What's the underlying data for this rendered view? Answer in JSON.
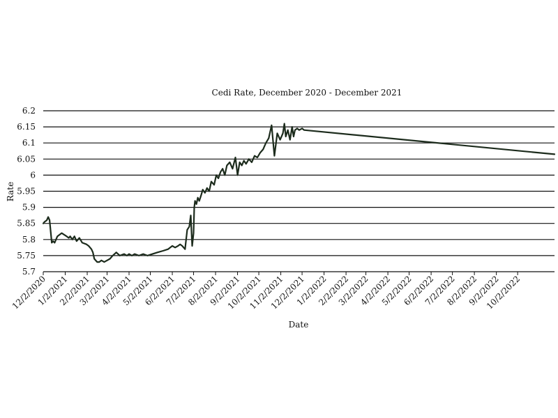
{
  "chart_data": {
    "type": "line",
    "title": "Cedi Rate, December 2020 - December 2021",
    "xlabel": "Date",
    "ylabel": "Rate",
    "ylim": [
      5.7,
      6.2
    ],
    "y_ticks": [
      "5.7",
      "5.75",
      "5.8",
      "5.85",
      "5.9",
      "5.95",
      "6",
      "6.05",
      "6.1",
      "6.15",
      "6.2"
    ],
    "x_tick_labels": [
      "12/2/2020",
      "1/2/2021",
      "2/2/2021",
      "3/2/2021",
      "4/2/2021",
      "5/2/2021",
      "6/2/2021",
      "7/2/2021",
      "8/2/2021",
      "9/2/2021",
      "10/2/2021",
      "11/2/2021",
      "12/2/2021",
      "1/2/2022",
      "2/2/2022",
      "3/2/2022",
      "4/2/2022",
      "5/2/2022",
      "6/2/2022",
      "7/2/2022",
      "8/2/2022",
      "9/2/2022",
      "10/2/2022"
    ],
    "xlim": [
      "12/2/2020",
      "11/23/2022"
    ],
    "grid": "horizontal",
    "line_color": "#1c2b1c",
    "series": [
      {
        "x": [
          "12/2/2020",
          "12/4/2020",
          "12/7/2020",
          "12/9/2020",
          "12/11/2020",
          "12/14/2020",
          "12/16/2020",
          "12/18/2020",
          "12/22/2020",
          "12/28/2020",
          "1/4/2021",
          "1/7/2021",
          "1/9/2021",
          "1/12/2021",
          "1/15/2021",
          "1/18/2021",
          "1/22/2021",
          "1/26/2021",
          "2/1/2021",
          "2/4/2021",
          "2/8/2021",
          "2/10/2021",
          "2/12/2021",
          "2/16/2021",
          "2/19/2021",
          "2/22/2021",
          "2/26/2021",
          "3/2/2021",
          "3/6/2021",
          "3/10/2021",
          "3/15/2021",
          "3/20/2021",
          "3/26/2021",
          "3/30/2021",
          "4/2/2021",
          "4/6/2021",
          "4/10/2021",
          "4/16/2021",
          "4/22/2021",
          "4/28/2021",
          "5/5/2021",
          "5/12/2021",
          "5/20/2021",
          "5/27/2021",
          "6/2/2021",
          "6/6/2021",
          "6/10/2021",
          "6/13/2021",
          "6/16/2021",
          "6/20/2021",
          "6/23/2021",
          "6/26/2021",
          "6/28/2021",
          "6/30/2021",
          "7/2/2021",
          "7/3/2021",
          "7/4/2021",
          "7/6/2021",
          "7/8/2021",
          "7/10/2021",
          "7/13/2021",
          "7/15/2021",
          "7/18/2021",
          "7/21/2021",
          "7/24/2021",
          "7/27/2021",
          "7/31/2021",
          "8/3/2021",
          "8/6/2021",
          "8/9/2021",
          "8/12/2021",
          "8/15/2021",
          "8/18/2021",
          "8/22/2021",
          "8/26/2021",
          "8/30/2021",
          "9/2/2021",
          "9/5/2021",
          "9/8/2021",
          "9/11/2021",
          "9/14/2021",
          "9/18/2021",
          "9/22/2021",
          "9/26/2021",
          "9/30/2021",
          "10/4/2021",
          "10/8/2021",
          "10/12/2021",
          "10/16/2021",
          "10/20/2021",
          "10/24/2021",
          "10/28/2021",
          "11/1/2021",
          "11/3/2021",
          "11/5/2021",
          "11/7/2021",
          "11/9/2021",
          "11/12/2021",
          "11/15/2021",
          "11/18/2021",
          "11/20/2021",
          "11/22/2021",
          "11/25/2021",
          "11/28/2021",
          "12/2/2021",
          "12/5/2021",
          "11/23/2022"
        ],
        "y": [
          5.85,
          5.855,
          5.86,
          5.87,
          5.86,
          5.79,
          5.795,
          5.79,
          5.81,
          5.82,
          5.81,
          5.805,
          5.81,
          5.8,
          5.81,
          5.795,
          5.805,
          5.79,
          5.785,
          5.78,
          5.77,
          5.76,
          5.74,
          5.73,
          5.73,
          5.735,
          5.73,
          5.735,
          5.74,
          5.75,
          5.76,
          5.75,
          5.755,
          5.75,
          5.755,
          5.75,
          5.755,
          5.75,
          5.755,
          5.75,
          5.755,
          5.76,
          5.765,
          5.77,
          5.78,
          5.775,
          5.78,
          5.785,
          5.78,
          5.77,
          5.83,
          5.84,
          5.875,
          5.78,
          5.82,
          5.9,
          5.92,
          5.91,
          5.93,
          5.92,
          5.94,
          5.955,
          5.945,
          5.96,
          5.95,
          5.98,
          5.97,
          6.0,
          5.99,
          6.01,
          6.02,
          6.0,
          6.03,
          6.04,
          6.02,
          6.055,
          6.0,
          6.04,
          6.03,
          6.045,
          6.035,
          6.05,
          6.04,
          6.06,
          6.055,
          6.07,
          6.08,
          6.1,
          6.115,
          6.155,
          6.06,
          6.13,
          6.11,
          6.12,
          6.13,
          6.16,
          6.12,
          6.14,
          6.11,
          6.15,
          6.12,
          6.14,
          6.145,
          6.14,
          6.145,
          6.14,
          6.065
        ]
      }
    ]
  }
}
